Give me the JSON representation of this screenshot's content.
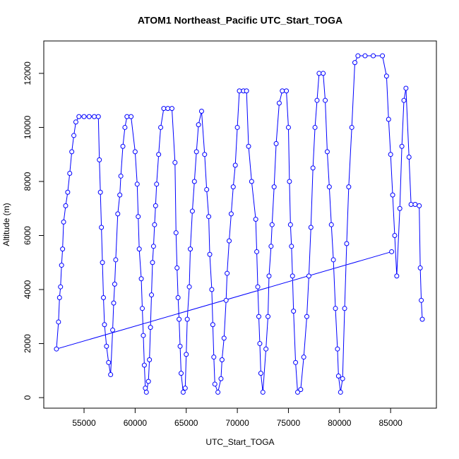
{
  "chart_data": {
    "type": "line",
    "title": "ATOM1 Northeast_Pacific UTC_Start_TOGA",
    "x_label": "UTC_Start_TOGA",
    "y_label": "Altitude (m)",
    "xlim": [
      51060,
      89480
    ],
    "ylim": [
      -390,
      13200
    ],
    "xticks": [
      55000,
      60000,
      65000,
      70000,
      75000,
      80000,
      85000
    ],
    "yticks": [
      0,
      2000,
      4000,
      6000,
      8000,
      10000,
      12000
    ],
    "x": [
      85100,
      52300,
      52500,
      52600,
      52700,
      52800,
      52900,
      53000,
      53200,
      53400,
      53600,
      53800,
      54000,
      54200,
      54500,
      55000,
      55500,
      56000,
      56400,
      56500,
      56600,
      56700,
      56800,
      56900,
      57000,
      57200,
      57400,
      57600,
      57800,
      57900,
      58000,
      58100,
      58300,
      58500,
      58600,
      58800,
      59000,
      59200,
      59600,
      60000,
      60200,
      60300,
      60400,
      60600,
      60700,
      60800,
      60900,
      61000,
      61100,
      61300,
      61400,
      61500,
      61600,
      61700,
      61800,
      61900,
      62000,
      62100,
      62300,
      62500,
      62800,
      63200,
      63600,
      63900,
      64000,
      64100,
      64200,
      64300,
      64400,
      64500,
      64700,
      64900,
      65000,
      65100,
      65300,
      65400,
      65600,
      65800,
      66000,
      66200,
      66500,
      66800,
      67000,
      67200,
      67300,
      67500,
      67600,
      67700,
      67800,
      68100,
      68400,
      68500,
      68700,
      68900,
      69000,
      69200,
      69400,
      69600,
      69800,
      70000,
      70200,
      70600,
      70900,
      71100,
      71400,
      71800,
      71900,
      72000,
      72100,
      72200,
      72300,
      72500,
      72800,
      73000,
      73100,
      73300,
      73400,
      73600,
      73800,
      74100,
      74400,
      74800,
      75000,
      75100,
      75200,
      75300,
      75400,
      75500,
      75700,
      75900,
      76200,
      76500,
      76800,
      77000,
      77200,
      77400,
      77600,
      77800,
      78000,
      78400,
      78600,
      78800,
      79000,
      79200,
      79400,
      79600,
      79800,
      79900,
      80100,
      80300,
      80500,
      80700,
      80900,
      81200,
      81500,
      81800,
      82500,
      83300,
      84200,
      84600,
      84800,
      85000,
      85200,
      85400,
      85600,
      85900,
      86100,
      86300,
      86500,
      86800,
      87000,
      87400,
      87800,
      87900,
      88000,
      88100
    ],
    "series": [
      {
        "color": "#0000ff",
        "values": [
          5400,
          1800,
          2800,
          3700,
          4100,
          4900,
          5500,
          6500,
          7100,
          7600,
          8300,
          9100,
          9700,
          10200,
          10400,
          10400,
          10400,
          10400,
          10400,
          8800,
          7600,
          6300,
          5000,
          3700,
          2700,
          1900,
          1300,
          850,
          2500,
          3500,
          4200,
          5100,
          6800,
          7500,
          8200,
          9300,
          10000,
          10400,
          10400,
          9100,
          7900,
          6700,
          5500,
          4400,
          3300,
          2300,
          1200,
          350,
          200,
          600,
          1400,
          2600,
          3800,
          5000,
          5600,
          6400,
          7100,
          7900,
          9000,
          10000,
          10700,
          10700,
          10700,
          8700,
          6100,
          4800,
          3700,
          2900,
          1900,
          900,
          200,
          350,
          1600,
          2900,
          4100,
          5500,
          6900,
          8000,
          9100,
          10100,
          10600,
          9000,
          7700,
          6700,
          5300,
          4000,
          2700,
          1500,
          500,
          200,
          700,
          1400,
          2200,
          3600,
          4600,
          5800,
          6800,
          7800,
          8600,
          10000,
          11350,
          11350,
          11350,
          9300,
          8000,
          6600,
          5400,
          4100,
          3000,
          2000,
          900,
          200,
          1800,
          3000,
          4500,
          5600,
          6400,
          7800,
          9400,
          10900,
          11350,
          11350,
          10000,
          8000,
          6400,
          5600,
          4500,
          3200,
          1300,
          200,
          300,
          1500,
          3000,
          4500,
          6300,
          8500,
          10000,
          11000,
          12000,
          12000,
          11000,
          9100,
          7800,
          6400,
          5100,
          3300,
          1800,
          800,
          200,
          700,
          3300,
          5700,
          7800,
          10000,
          12400,
          12650,
          12650,
          12650,
          12650,
          11900,
          10300,
          9000,
          7500,
          6000,
          4500,
          7000,
          9300,
          11000,
          11450,
          8900,
          7150,
          7150,
          7100,
          4800,
          3600,
          2900
        ]
      }
    ]
  }
}
